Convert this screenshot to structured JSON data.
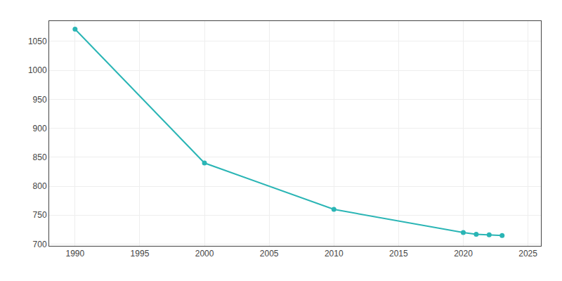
{
  "chart_data": {
    "type": "line",
    "x": [
      1990,
      2000,
      2010,
      2020,
      2021,
      2022,
      2023
    ],
    "values": [
      1071,
      840,
      760,
      720,
      717,
      716,
      715
    ],
    "color": "#2ab5b5",
    "marker": "circle",
    "xlim": [
      1988,
      2026
    ],
    "ylim": [
      697,
      1085
    ],
    "xticks": [
      1990,
      1995,
      2000,
      2005,
      2010,
      2015,
      2020,
      2025
    ],
    "yticks": [
      700,
      750,
      800,
      850,
      900,
      950,
      1000,
      1050
    ],
    "grid": true
  }
}
